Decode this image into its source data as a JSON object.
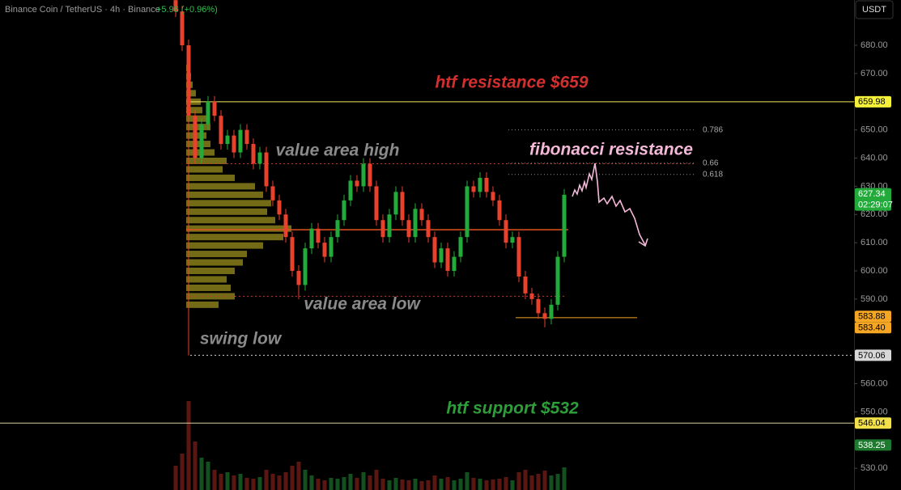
{
  "header": {
    "symbol": "Binance Coin / TetherUS · 4h · Binance",
    "change": "+5.96 (+0.96%)",
    "currency": "USDT"
  },
  "chart_data": {
    "type": "candlestick",
    "colors": {
      "up": "#22ab3a",
      "down": "#e8412c",
      "volume_up": "#14501f",
      "volume_down": "#5a1712"
    },
    "ylim": [
      522.3,
      696.06
    ],
    "yticks": [
      {
        "value": 530,
        "label": "530.00"
      },
      {
        "value": 550,
        "label": "550.00"
      },
      {
        "value": 560,
        "label": "560.00"
      },
      {
        "value": 590,
        "label": "590.00"
      },
      {
        "value": 600,
        "label": "600.00"
      },
      {
        "value": 610,
        "label": "610.00"
      },
      {
        "value": 620,
        "label": "620.00"
      },
      {
        "value": 630,
        "label": "630.00"
      },
      {
        "value": 640,
        "label": "640.00"
      },
      {
        "value": 650,
        "label": "650.00"
      },
      {
        "value": 670,
        "label": "670.00"
      },
      {
        "value": 680,
        "label": "680.00"
      }
    ],
    "open": [
      696,
      692,
      680,
      655,
      640,
      652,
      660,
      655,
      645,
      648,
      642,
      650,
      645,
      638,
      642,
      630,
      625,
      620,
      612,
      600,
      595,
      608,
      615,
      610,
      605,
      612,
      618,
      625,
      632,
      630,
      638,
      630,
      618,
      612,
      620,
      628,
      618,
      612,
      622,
      618,
      612,
      603,
      608,
      600,
      605,
      612,
      630,
      628,
      633,
      628,
      625,
      618,
      610,
      612,
      598,
      592,
      590,
      585,
      583,
      588,
      605
    ],
    "high": [
      698,
      694,
      682,
      657,
      654,
      662,
      662,
      657,
      650,
      650,
      652,
      652,
      647,
      644,
      644,
      632,
      627,
      622,
      614,
      602,
      610,
      617,
      617,
      612,
      614,
      620,
      627,
      634,
      634,
      640,
      640,
      632,
      620,
      622,
      630,
      630,
      620,
      624,
      624,
      620,
      614,
      610,
      610,
      607,
      614,
      632,
      632,
      635,
      635,
      630,
      627,
      620,
      614,
      614,
      600,
      594,
      592,
      587,
      590,
      607,
      629
    ],
    "low": [
      690,
      678,
      570,
      638,
      638,
      650,
      653,
      643,
      643,
      640,
      640,
      643,
      636,
      636,
      628,
      623,
      618,
      610,
      598,
      590,
      593,
      606,
      608,
      603,
      603,
      610,
      616,
      623,
      628,
      628,
      628,
      616,
      610,
      610,
      618,
      616,
      610,
      610,
      616,
      610,
      601,
      601,
      598,
      598,
      603,
      610,
      626,
      626,
      626,
      623,
      616,
      608,
      608,
      596,
      590,
      588,
      583,
      580,
      581,
      586,
      603
    ],
    "close": [
      692,
      680,
      655,
      640,
      652,
      660,
      655,
      645,
      648,
      642,
      650,
      645,
      638,
      642,
      630,
      625,
      620,
      612,
      600,
      595,
      608,
      615,
      610,
      605,
      612,
      618,
      625,
      632,
      630,
      638,
      630,
      618,
      612,
      620,
      628,
      618,
      612,
      622,
      618,
      612,
      603,
      608,
      600,
      605,
      612,
      630,
      628,
      633,
      628,
      625,
      618,
      610,
      612,
      598,
      592,
      590,
      585,
      583,
      588,
      605,
      627
    ],
    "volume": [
      30,
      45,
      110,
      60,
      40,
      35,
      25,
      20,
      22,
      18,
      20,
      15,
      14,
      16,
      25,
      20,
      18,
      22,
      30,
      35,
      25,
      18,
      14,
      12,
      15,
      14,
      16,
      20,
      15,
      22,
      18,
      25,
      14,
      12,
      15,
      13,
      12,
      14,
      11,
      12,
      18,
      14,
      16,
      12,
      14,
      22,
      15,
      14,
      12,
      13,
      14,
      16,
      12,
      22,
      25,
      18,
      20,
      24,
      18,
      20,
      28
    ],
    "volume_profile": {
      "color": "#d4c22a",
      "prices": [
        588,
        591,
        594,
        597,
        600,
        603,
        606,
        609,
        612,
        615,
        618,
        621,
        624,
        627,
        630,
        633,
        636,
        639,
        642,
        645,
        648,
        651,
        654,
        657,
        660,
        663,
        666,
        669,
        672
      ],
      "values": [
        40,
        60,
        55,
        50,
        60,
        70,
        75,
        95,
        120,
        130,
        110,
        100,
        105,
        95,
        85,
        60,
        45,
        50,
        35,
        30,
        25,
        30,
        25,
        20,
        18,
        12,
        8,
        6,
        5
      ]
    },
    "value_area": {
      "high": 638,
      "low": 591,
      "poc": 614.6,
      "color": "#c0392b",
      "poc_color": "#e0531f"
    },
    "fib_levels": [
      {
        "value": 650,
        "label": "0.786"
      },
      {
        "value": 638.2,
        "label": "0.66"
      },
      {
        "value": 634.2,
        "label": "0.618"
      }
    ],
    "price_labels": [
      {
        "value": 659.98,
        "label": "659.98",
        "color": "#f5f03a",
        "text_color": "#000",
        "line": "solid",
        "line_color": "#f5e663"
      },
      {
        "value": 627.34,
        "label": "627.34",
        "timer": "02:29:07",
        "color": "#22ab3a",
        "text_color": "#fff"
      },
      {
        "value": 583.88,
        "label": "583.88",
        "color": "#f5a623",
        "text_color": "#000"
      },
      {
        "value": 583.4,
        "label": "583.40",
        "color": "#f5a623",
        "text_color": "#000",
        "line": "solid",
        "line_color": "#f5a623"
      },
      {
        "value": 570.06,
        "label": "570.06",
        "color": "#d8d8d8",
        "text_color": "#000",
        "line": "dotted",
        "line_color": "#cfcfcf"
      },
      {
        "value": 546.04,
        "label": "546.04",
        "color": "#f2e14a",
        "text_color": "#000",
        "line": "solid",
        "line_color": "#d9cfa0"
      },
      {
        "value": 538.25,
        "label": "538.25",
        "color": "#1e7a2e",
        "text_color": "#fff"
      }
    ],
    "annotations": {
      "resistance": "htf resistance $659",
      "fibonacci": "fibonacci resistance",
      "value_area_high": "value area high",
      "value_area_low": "value area low",
      "swing_low": "swing low",
      "support": "htf support $532"
    }
  }
}
